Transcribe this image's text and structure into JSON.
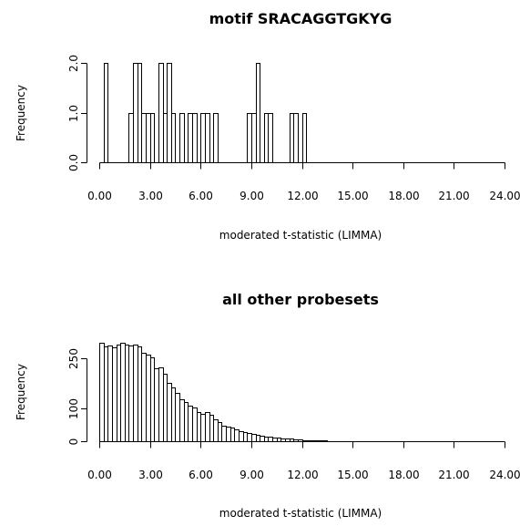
{
  "chart_data": [
    {
      "type": "bar",
      "title": "motif SRACAGGTGKYG",
      "xlabel": "moderated t-statistic (LIMMA)",
      "ylabel": "Frequency",
      "xlim": [
        0,
        24
      ],
      "ylim": [
        0,
        2
      ],
      "bin_width": 0.25,
      "x_ticks": [
        "0.00",
        "3.00",
        "6.00",
        "9.00",
        "12.00",
        "15.00",
        "18.00",
        "21.00",
        "24.00"
      ],
      "y_ticks": [
        "0.0",
        "1.0",
        "2.0"
      ],
      "y_tick_values": [
        0,
        1,
        2
      ],
      "bins": [
        {
          "x": 0.25,
          "count": 2
        },
        {
          "x": 1.75,
          "count": 1
        },
        {
          "x": 2.0,
          "count": 2
        },
        {
          "x": 2.25,
          "count": 2
        },
        {
          "x": 2.5,
          "count": 1
        },
        {
          "x": 2.75,
          "count": 1
        },
        {
          "x": 3.0,
          "count": 1
        },
        {
          "x": 3.5,
          "count": 2
        },
        {
          "x": 3.75,
          "count": 1
        },
        {
          "x": 4.0,
          "count": 2
        },
        {
          "x": 4.25,
          "count": 1
        },
        {
          "x": 4.75,
          "count": 1
        },
        {
          "x": 5.25,
          "count": 1
        },
        {
          "x": 5.5,
          "count": 1
        },
        {
          "x": 6.0,
          "count": 1
        },
        {
          "x": 6.25,
          "count": 1
        },
        {
          "x": 6.75,
          "count": 1
        },
        {
          "x": 8.75,
          "count": 1
        },
        {
          "x": 9.0,
          "count": 1
        },
        {
          "x": 9.25,
          "count": 2
        },
        {
          "x": 9.75,
          "count": 1
        },
        {
          "x": 10.0,
          "count": 1
        },
        {
          "x": 11.25,
          "count": 1
        },
        {
          "x": 11.5,
          "count": 1
        },
        {
          "x": 12.0,
          "count": 1
        }
      ]
    },
    {
      "type": "bar",
      "title": "all other probesets",
      "xlabel": "moderated t-statistic (LIMMA)",
      "ylabel": "Frequency",
      "xlim": [
        0,
        24
      ],
      "ylim": [
        0,
        300
      ],
      "bin_width": 0.25,
      "x_ticks": [
        "0.00",
        "3.00",
        "6.00",
        "9.00",
        "12.00",
        "15.00",
        "18.00",
        "21.00",
        "24.00"
      ],
      "y_ticks": [
        "0",
        "100",
        "250"
      ],
      "y_tick_values": [
        0,
        100,
        250
      ],
      "bin_start": 0,
      "counts": [
        298,
        285,
        290,
        283,
        293,
        296,
        293,
        290,
        293,
        287,
        268,
        262,
        253,
        220,
        222,
        203,
        177,
        162,
        147,
        127,
        117,
        108,
        103,
        88,
        82,
        87,
        80,
        67,
        57,
        48,
        45,
        42,
        35,
        30,
        28,
        24,
        22,
        20,
        17,
        15,
        14,
        12,
        10,
        9,
        8,
        7,
        6,
        5,
        4,
        3,
        3,
        2,
        2,
        2,
        1,
        1,
        1,
        1
      ]
    }
  ]
}
